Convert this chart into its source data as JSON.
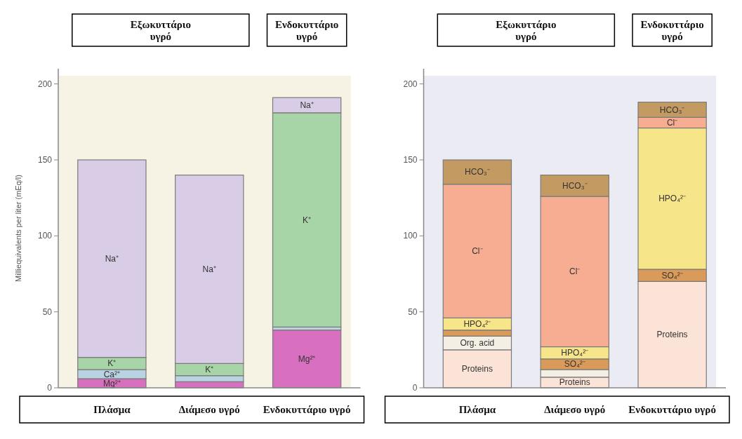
{
  "chart_data": [
    {
      "type": "bar",
      "stacked": true,
      "ylabel": "Milliequivalents per liter (mEq/l)",
      "categories": [
        "Πλάσμα",
        "Διάμεσο υγρό",
        "Ενδοκυττάριο υγρό"
      ],
      "ylim": [
        0,
        210
      ],
      "yticks": [
        0,
        50,
        100,
        150,
        200
      ],
      "grid": false,
      "annotations": [
        "Εξωκυττάριο υγρό",
        "Ενδοκυττάριο υγρό"
      ],
      "series": [
        {
          "name": "Mg²⁺",
          "color": "#d96fbf",
          "values": [
            6,
            4,
            38
          ]
        },
        {
          "name": "Ca²⁺",
          "color": "#b9d3e3",
          "values": [
            6,
            4,
            2
          ]
        },
        {
          "name": "K⁺",
          "color": "#a8d5a8",
          "values": [
            8,
            8,
            141
          ]
        },
        {
          "name": "Na⁺",
          "color": "#d9cce6",
          "values": [
            130,
            124,
            10
          ]
        }
      ]
    },
    {
      "type": "bar",
      "stacked": true,
      "categories": [
        "Πλάσμα",
        "Διάμεσο υγρό",
        "Ενδοκυττάριο υγρό"
      ],
      "ylim": [
        0,
        210
      ],
      "yticks": [
        0,
        50,
        100,
        150,
        200
      ],
      "grid": false,
      "annotations": [
        "Εξωκυττάριο υγρό",
        "Ενδοκυττάριο υγρό"
      ],
      "series": [
        {
          "name": "Proteins",
          "color": "#fbe3d8",
          "values": [
            25,
            7,
            70
          ]
        },
        {
          "name": "Org. acid",
          "color": "#f3efe4",
          "values": [
            9,
            5,
            0
          ]
        },
        {
          "name": "SO₄²⁻",
          "color": "#d99a5a",
          "values": [
            4,
            7,
            8
          ]
        },
        {
          "name": "HPO₄²⁻",
          "color": "#f7e58a",
          "values": [
            8,
            8,
            93
          ]
        },
        {
          "name": "Cl⁻",
          "color": "#f7ad92",
          "values": [
            88,
            99,
            7
          ]
        },
        {
          "name": "HCO₃⁻",
          "color": "#c49a63",
          "values": [
            16,
            14,
            10
          ]
        }
      ]
    }
  ]
}
